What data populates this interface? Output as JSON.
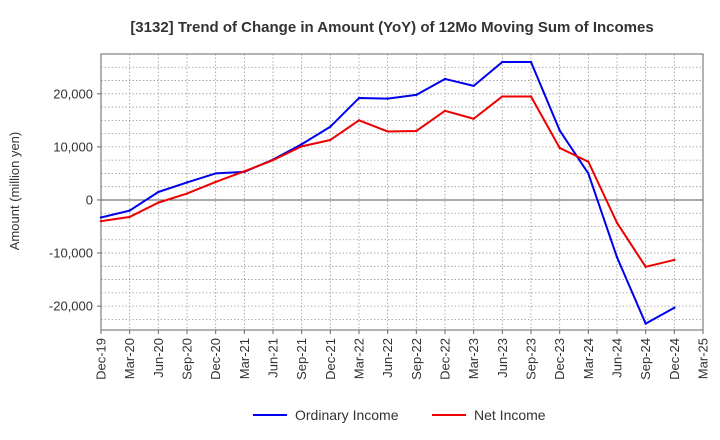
{
  "chart_data": {
    "type": "line",
    "title": "[3132]  Trend of Change in Amount (YoY) of 12Mo Moving Sum of Incomes",
    "xlabel": "",
    "ylabel": "Amount (million yen)",
    "ylim": [
      -24500,
      27500
    ],
    "yticks": [
      -20000,
      -10000,
      0,
      10000,
      20000
    ],
    "ytick_labels": [
      "-20,000",
      "-10,000",
      "0",
      "10,000",
      "20,000"
    ],
    "xtick_labels": [
      "Dec-19",
      "Mar-20",
      "Jun-20",
      "Sep-20",
      "Dec-20",
      "Mar-21",
      "Jun-21",
      "Sep-21",
      "Dec-21",
      "Mar-22",
      "Jun-22",
      "Sep-22",
      "Dec-22",
      "Mar-23",
      "Jun-23",
      "Sep-23",
      "Dec-23",
      "Mar-24",
      "Jun-24",
      "Sep-24",
      "Dec-24",
      "Mar-25"
    ],
    "x_index_range": [
      0,
      21
    ],
    "grid": true,
    "legend_position": "bottom-center",
    "series": [
      {
        "name": "Ordinary Income",
        "color": "#0000ee",
        "x": [
          0,
          1,
          2,
          3,
          4,
          5,
          6,
          7,
          8,
          9,
          10,
          11,
          12,
          13,
          14,
          15,
          16,
          17,
          18,
          19,
          20
        ],
        "values": [
          -3300,
          -2000,
          1500,
          3300,
          5000,
          5300,
          7600,
          10500,
          13800,
          19200,
          19100,
          19800,
          22800,
          21500,
          26000,
          26000,
          13100,
          5000,
          -10800,
          -23300,
          -20300
        ]
      },
      {
        "name": "Net Income",
        "color": "#ee0000",
        "x": [
          0,
          1,
          2,
          3,
          4,
          5,
          6,
          7,
          8,
          9,
          10,
          11,
          12,
          13,
          14,
          15,
          16,
          17,
          18,
          19,
          20
        ],
        "values": [
          -4000,
          -3200,
          -500,
          1200,
          3400,
          5400,
          7500,
          10100,
          11300,
          15000,
          12900,
          13000,
          16800,
          15300,
          19500,
          19500,
          9800,
          7200,
          -4300,
          -12600,
          -11300
        ]
      }
    ]
  }
}
